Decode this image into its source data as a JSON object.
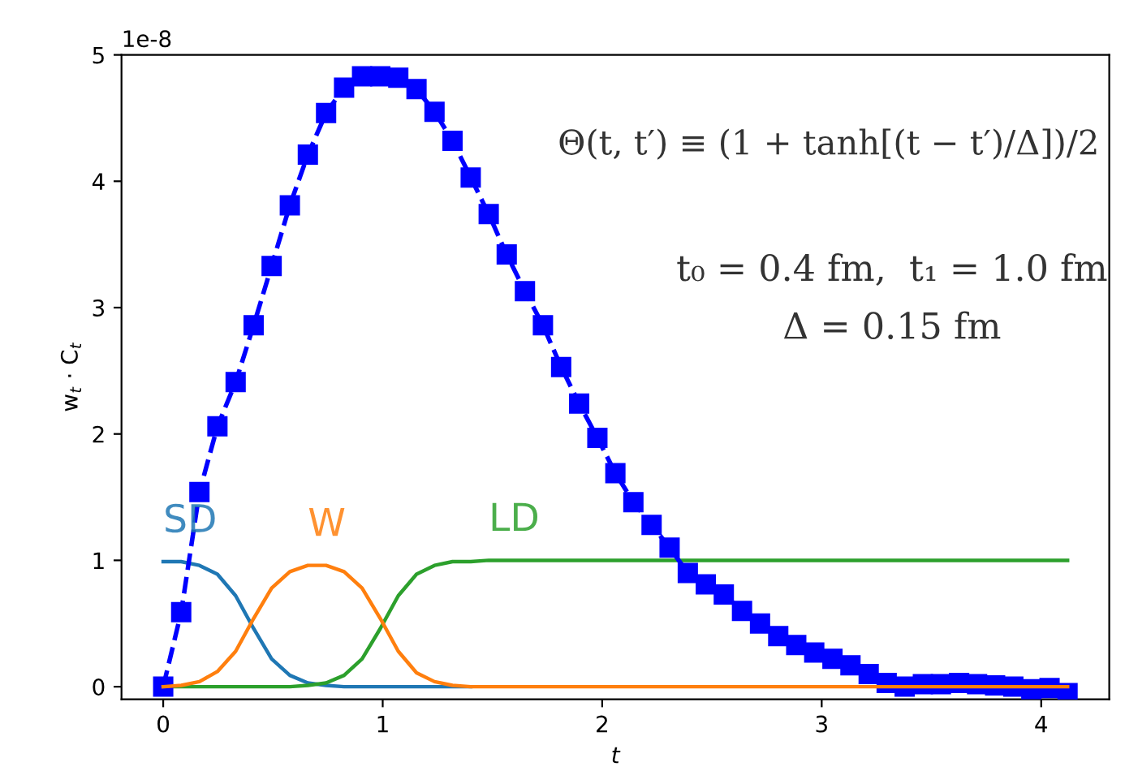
{
  "chart_data": {
    "type": "line",
    "xlabel": "t",
    "ylabel": "w$_{t}$ · C$_{t}$",
    "xlim": [
      -0.19,
      4.31
    ],
    "ylim": [
      -0.1,
      5
    ],
    "xticks": [
      0,
      1,
      2,
      3,
      4
    ],
    "yticks": [
      0,
      1,
      2,
      3,
      4,
      5
    ],
    "grid": false,
    "legend": false,
    "x": [
      0,
      0.082,
      0.165,
      0.247,
      0.33,
      0.412,
      0.494,
      0.577,
      0.659,
      0.742,
      0.824,
      0.906,
      0.989,
      1.071,
      1.154,
      1.236,
      1.318,
      1.401,
      1.483,
      1.565,
      1.648,
      1.73,
      1.813,
      1.895,
      1.978,
      2.06,
      2.142,
      2.225,
      2.307,
      2.39,
      2.472,
      2.554,
      2.637,
      2.719,
      2.802,
      2.884,
      2.966,
      3.049,
      3.131,
      3.214,
      3.296,
      3.378,
      3.461,
      3.543,
      3.626,
      3.708,
      3.79,
      3.873,
      3.955,
      4.038,
      4.12
    ],
    "series": [
      {
        "color": "#0000ff",
        "marker": "square",
        "line_style": "dashed",
        "values": [
          0,
          0.59,
          1.54,
          2.06,
          2.41,
          2.86,
          3.33,
          3.81,
          4.21,
          4.54,
          4.74,
          4.83,
          4.83,
          4.82,
          4.73,
          4.55,
          4.32,
          4.03,
          3.74,
          3.42,
          3.13,
          2.86,
          2.53,
          2.24,
          1.97,
          1.69,
          1.46,
          1.28,
          1.1,
          0.9,
          0.81,
          0.73,
          0.6,
          0.5,
          0.4,
          0.33,
          0.27,
          0.22,
          0.17,
          0.1,
          0.03,
          0.0,
          0.02,
          0.02,
          0.03,
          0.02,
          0.01,
          0.0,
          -0.02,
          -0.01,
          -0.05
        ],
        "errors": [
          null,
          null,
          null,
          null,
          null,
          null,
          null,
          null,
          null,
          null,
          null,
          null,
          null,
          null,
          null,
          null,
          null,
          null,
          null,
          null,
          null,
          null,
          null,
          null,
          null,
          null,
          null,
          null,
          null,
          null,
          null,
          null,
          null,
          null,
          0.03,
          0.03,
          0.03,
          0.03,
          0.04,
          0.04,
          0.04,
          0.04,
          0.04,
          0.04,
          0.04,
          0.04,
          0.04,
          0.04,
          0.04,
          0.04,
          0.04
        ]
      },
      {
        "name": "SD",
        "color": "#1f77b4",
        "marker": "none",
        "line_style": "solid",
        "values": [
          0.99,
          0.99,
          0.96,
          0.89,
          0.72,
          0.46,
          0.22,
          0.09,
          0.03,
          0.01,
          0.0,
          0,
          0,
          0,
          0,
          0,
          0,
          0,
          null,
          null,
          null,
          null,
          null,
          null,
          null,
          null,
          null,
          null,
          null,
          null,
          null,
          null,
          null,
          null,
          null,
          null,
          null,
          null,
          null,
          null,
          null,
          null,
          null,
          null,
          null,
          null,
          null,
          null,
          null,
          null,
          null
        ]
      },
      {
        "name": "W",
        "color": "#ff7f0e",
        "marker": "none",
        "line_style": "solid",
        "values": [
          0.0,
          0.01,
          0.04,
          0.12,
          0.28,
          0.54,
          0.78,
          0.91,
          0.96,
          0.96,
          0.91,
          0.78,
          0.54,
          0.28,
          0.11,
          0.04,
          0.01,
          0.0,
          0,
          0,
          0,
          0,
          0,
          0,
          0,
          0,
          0,
          0,
          0,
          0,
          0,
          0,
          0,
          0,
          0,
          0,
          0,
          0,
          0,
          0,
          0,
          0,
          0,
          0,
          0,
          0,
          0,
          0,
          0,
          0,
          0
        ]
      },
      {
        "name": "LD",
        "color": "#2ca02c",
        "marker": "none",
        "line_style": "solid",
        "values": [
          0,
          0,
          0,
          0,
          0,
          0,
          0.0,
          0.0,
          0.01,
          0.03,
          0.09,
          0.22,
          0.46,
          0.72,
          0.89,
          0.96,
          0.99,
          0.99,
          1,
          1,
          1,
          1,
          1,
          1,
          1,
          1,
          1,
          1,
          1,
          1,
          1,
          1,
          1,
          1,
          1,
          1,
          1,
          1,
          1,
          1,
          1,
          1,
          1,
          1,
          1,
          1,
          1,
          1,
          1,
          1,
          1
        ]
      }
    ],
    "annotations": [
      "1e-8",
      "Θ(t, t′) ≡ (1 + tanh[(t − t′)/Δ])/2",
      "t₀ = 0.4 fm,  t₁ = 1.0 fm",
      "Δ = 0.15 fm"
    ]
  }
}
